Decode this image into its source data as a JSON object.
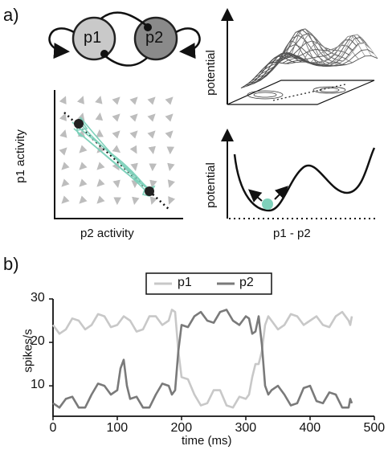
{
  "panel_a": {
    "label": "a)",
    "network": {
      "node1": "p1",
      "node2": "p2"
    },
    "phase_plane": {
      "xlabel": "p2 activity",
      "ylabel": "p1 activity"
    },
    "potential_3d": {
      "zlabel": "potential"
    },
    "potential_1d": {
      "xlabel": "p1 - p2",
      "ylabel": "potential"
    }
  },
  "panel_b": {
    "label": "b)",
    "legend": [
      "p1",
      "p2"
    ],
    "xlabel": "time (ms)",
    "ylabel": "spikes/s",
    "xticks": [
      "0",
      "100",
      "200",
      "300",
      "400",
      "500"
    ],
    "yticks": [
      "10",
      "20",
      "30"
    ]
  },
  "colors": {
    "p1": "#c8c8c8",
    "p2": "#7a7a7a",
    "teal": "#7fd1bb",
    "node1_fill": "#c9c9c9",
    "node2_fill": "#8a8a8a"
  },
  "chart_data": {
    "type": "line",
    "xlabel": "time (ms)",
    "ylabel": "spikes/s",
    "xlim": [
      0,
      500
    ],
    "ylim": [
      3,
      30
    ],
    "series": [
      {
        "name": "p1",
        "x": [
          0,
          20,
          40,
          60,
          80,
          100,
          120,
          140,
          160,
          180,
          190,
          200,
          220,
          240,
          260,
          280,
          300,
          310,
          320,
          330,
          340,
          360,
          380,
          400,
          420,
          440,
          460,
          465
        ],
        "values": [
          24,
          23,
          25,
          24,
          26,
          24,
          25,
          23,
          26,
          25,
          27,
          12,
          8,
          6,
          9,
          5,
          7,
          12,
          15,
          24,
          25,
          24,
          26,
          25,
          24,
          26,
          25,
          26
        ]
      },
      {
        "name": "p2",
        "x": [
          0,
          20,
          40,
          60,
          80,
          100,
          110,
          120,
          140,
          160,
          180,
          190,
          200,
          220,
          240,
          260,
          280,
          300,
          310,
          320,
          330,
          340,
          360,
          380,
          400,
          420,
          440,
          460,
          465
        ],
        "values": [
          6,
          7,
          5,
          8,
          10,
          9,
          16,
          7,
          5,
          8,
          10,
          9,
          24,
          26,
          25,
          27,
          25,
          26,
          22,
          26,
          10,
          9,
          8,
          6,
          10,
          6,
          8,
          5,
          6
        ]
      }
    ]
  }
}
